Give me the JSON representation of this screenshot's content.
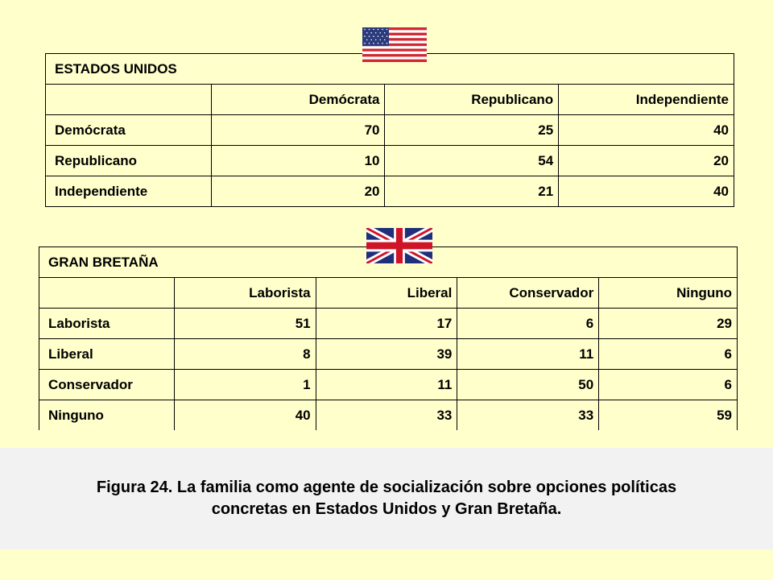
{
  "colors": {
    "background": "#FFFFCC",
    "caption_band": "#F2F2F2"
  },
  "flags": {
    "us": "us-flag-icon",
    "uk": "uk-flag-icon"
  },
  "usa": {
    "title": "ESTADOS UNIDOS",
    "columns": [
      "",
      "Demócrata",
      "Republicano",
      "Independiente"
    ],
    "rows": [
      {
        "label": "Demócrata",
        "values": [
          "70",
          "25",
          "40"
        ]
      },
      {
        "label": "Republicano",
        "values": [
          "10",
          "54",
          "20"
        ]
      },
      {
        "label": "Independiente",
        "values": [
          "20",
          "21",
          "40"
        ]
      }
    ]
  },
  "gb": {
    "title": "GRAN BRETAÑA",
    "columns": [
      "",
      "Laborista",
      "Liberal",
      "Conservador",
      "Ninguno"
    ],
    "rows": [
      {
        "label": "Laborista",
        "values": [
          "51",
          "17",
          "6",
          "29"
        ]
      },
      {
        "label": "Liberal",
        "values": [
          "8",
          "39",
          "11",
          "6"
        ]
      },
      {
        "label": "Conservador",
        "values": [
          "1",
          "11",
          "50",
          "6"
        ]
      },
      {
        "label": "Ninguno",
        "values": [
          "40",
          "33",
          "33",
          "59"
        ]
      }
    ]
  },
  "caption": {
    "line1": "Figura 24. La familia como agente de socialización sobre opciones políticas",
    "line2": "concretas en Estados Unidos y Gran Bretaña."
  }
}
